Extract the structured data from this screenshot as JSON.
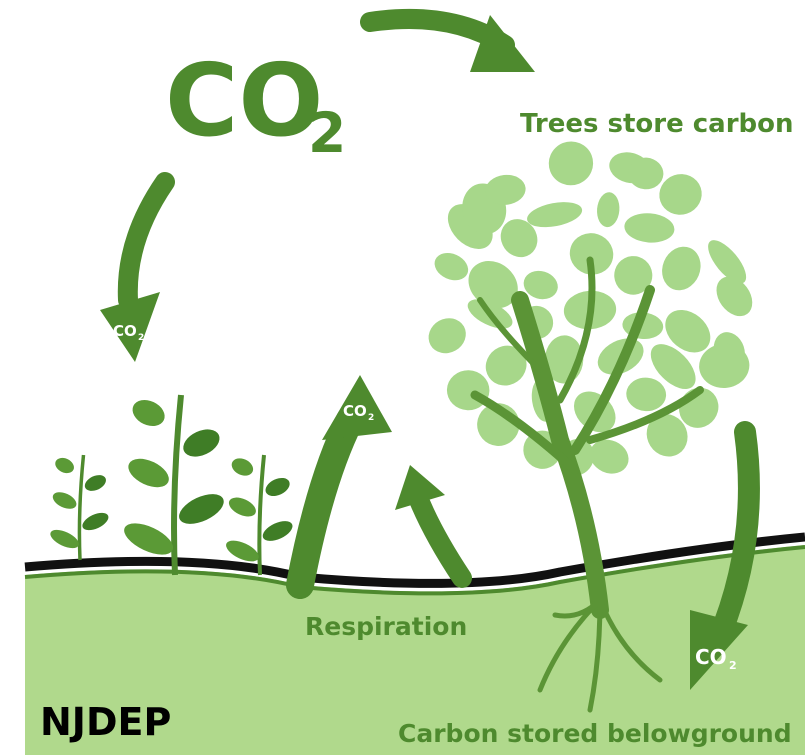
{
  "co2_main": {
    "base": "CO",
    "sub": "2"
  },
  "co2_markers": [
    {
      "base": "CO",
      "sub": "2"
    },
    {
      "base": "CO",
      "sub": "2"
    },
    {
      "base": "CO",
      "sub": "2"
    }
  ],
  "labels": {
    "trees": "Trees store carbon",
    "respiration": "Respiration",
    "belowground": "Carbon stored belowground",
    "source": "NJDEP"
  }
}
